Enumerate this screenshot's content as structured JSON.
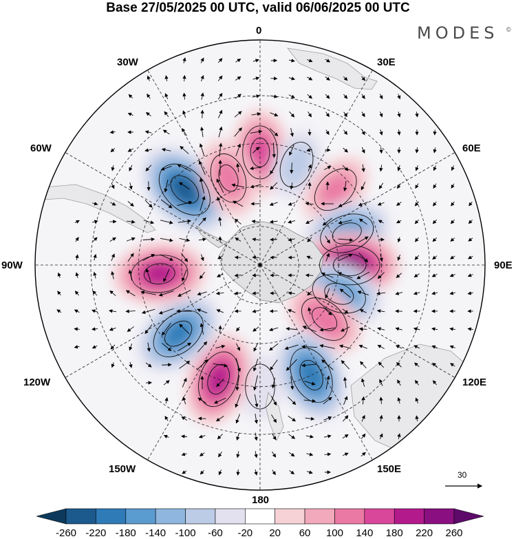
{
  "title": "Base 27/05/2025 00 UTC, valid 06/06/2025 00 UTC",
  "brand": "MODES",
  "brand_mark": "©",
  "longitude_labels": {
    "lon_0": "0",
    "lon_30e": "30E",
    "lon_60e": "60E",
    "lon_90e": "90E",
    "lon_120e": "120E",
    "lon_150e": "150E",
    "lon_180": "180",
    "lon_150w": "150W",
    "lon_120w": "120W",
    "lon_90w": "90W",
    "lon_60w": "60W",
    "lon_30w": "30W"
  },
  "vector_reference": {
    "label": "30"
  },
  "colorbar": {
    "ticks": [
      "-260",
      "-220",
      "-180",
      "-140",
      "-100",
      "-60",
      "-20",
      "20",
      "60",
      "100",
      "140",
      "180",
      "220",
      "260"
    ],
    "colors": [
      "#0d3a5c",
      "#1c5a8e",
      "#2f7bb8",
      "#5a9bd0",
      "#8fb6df",
      "#bccbe6",
      "#e3e1ef",
      "#ffffff",
      "#f6d2d6",
      "#f2a9bb",
      "#ea79a4",
      "#d9479a",
      "#b31a8c",
      "#8a0f80",
      "#5d0a6b"
    ]
  },
  "map": {
    "projection": "south polar stereographic",
    "anomalies": [
      {
        "lon": 0,
        "lat": -48,
        "value": 150
      },
      {
        "lon": 20,
        "lat": -50,
        "value": -80
      },
      {
        "lon": 45,
        "lat": -50,
        "value": 110
      },
      {
        "lon": 70,
        "lat": -55,
        "value": -170
      },
      {
        "lon": 90,
        "lat": -56,
        "value": 230
      },
      {
        "lon": 110,
        "lat": -58,
        "value": -170
      },
      {
        "lon": 130,
        "lat": -58,
        "value": 140
      },
      {
        "lon": 155,
        "lat": -45,
        "value": -200
      },
      {
        "lon": 180,
        "lat": -45,
        "value": -60
      },
      {
        "lon": -160,
        "lat": -45,
        "value": 190
      },
      {
        "lon": -130,
        "lat": -50,
        "value": -190
      },
      {
        "lon": -95,
        "lat": -52,
        "value": 190
      },
      {
        "lon": -45,
        "lat": -50,
        "value": -230
      },
      {
        "lon": -20,
        "lat": -55,
        "value": 120
      }
    ]
  }
}
